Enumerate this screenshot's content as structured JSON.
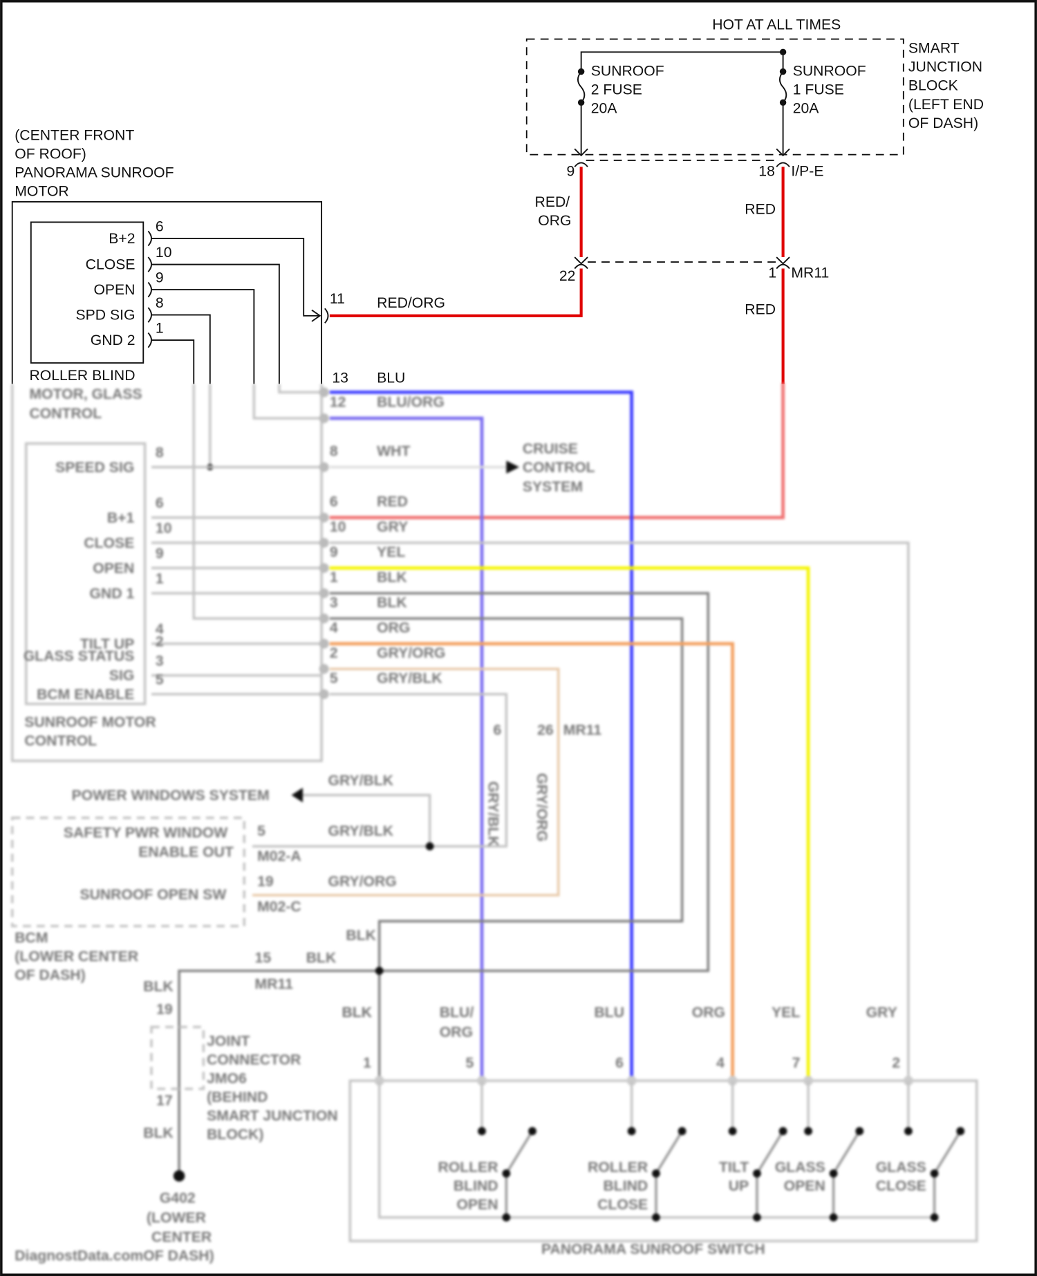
{
  "colors": {
    "red": "#e00000",
    "blue": "#3a3aff",
    "blu_org": "#7a6cf0",
    "yellow": "#f5f500",
    "orange": "#f3a060",
    "gry_org": "#e8c9a8",
    "grey": "#c8c8c8",
    "black_wire": "#808080",
    "frame": "#111111"
  },
  "top": {
    "hot": "HOT AT ALL TIMES",
    "fuse2": [
      "SUNROOF",
      "2 FUSE",
      "20A"
    ],
    "fuse1": [
      "SUNROOF",
      "1 FUSE",
      "20A"
    ],
    "sjb": [
      "SMART",
      "JUNCTION",
      "BLOCK",
      "(LEFT END",
      "OF DASH)"
    ]
  },
  "connectors": {
    "p9": "9",
    "p18": "18",
    "ipe": "I/P-E",
    "p22": "22",
    "p1": "1",
    "mr11": "MR11",
    "p11": "11",
    "p13": "13"
  },
  "wires": {
    "red_org_a": "RED/",
    "red_org_b": "ORG",
    "red1": "RED",
    "red2": "RED",
    "red_org": "RED/ORG",
    "blu": "BLU"
  },
  "motor": {
    "title": [
      "(CENTER FRONT",
      "OF ROOF)",
      "PANORAMA SUNROOF",
      "MOTOR"
    ],
    "roller_pins": [
      {
        "label": "B+2",
        "num": "6"
      },
      {
        "label": "CLOSE",
        "num": "10"
      },
      {
        "label": "OPEN",
        "num": "9"
      },
      {
        "label": "SPD SIG",
        "num": "8"
      },
      {
        "label": "GND 2",
        "num": "1"
      }
    ],
    "roller_title": [
      "ROLLER BLIND",
      "MOTOR, GLASS",
      "CONTROL"
    ],
    "sunroof_pins": [
      {
        "label": "SPEED SIG",
        "num": "8"
      },
      {
        "label": "B+1",
        "num": "6"
      },
      {
        "label": "CLOSE",
        "num": "10"
      },
      {
        "label": "OPEN",
        "num": "9"
      },
      {
        "label": "GND 1",
        "num": "1"
      },
      {
        "label": "TILT UP",
        "num": "4"
      },
      {
        "label": "GLASS STATUS",
        "num": "2"
      },
      {
        "label": "SIG",
        "num": "3"
      },
      {
        "label": "BCM ENABLE",
        "num": "5"
      }
    ],
    "sunroof_title": [
      "SUNROOF MOTOR",
      "CONTROL"
    ]
  },
  "harness": [
    {
      "num": "12",
      "color": "BLU/ORG"
    },
    {
      "num": "8",
      "color": "WHT"
    },
    {
      "num": "6",
      "color": "RED"
    },
    {
      "num": "10",
      "color": "GRY"
    },
    {
      "num": "9",
      "color": "YEL"
    },
    {
      "num": "1",
      "color": "BLK"
    },
    {
      "num": "3",
      "color": "BLK"
    },
    {
      "num": "4",
      "color": "ORG"
    },
    {
      "num": "2",
      "color": "GRY/ORG"
    },
    {
      "num": "5",
      "color": "GRY/BLK"
    }
  ],
  "cruise": [
    "CRUISE",
    "CONTROL",
    "SYSTEM"
  ],
  "mid": {
    "p6": "6",
    "p26": "26",
    "mr11": "MR11",
    "v1": "GRY/BLK",
    "v2": "GRY/ORG",
    "gry_blk1": "GRY/BLK",
    "power_windows": "POWER WINDOWS SYSTEM",
    "gry_blk2": "GRY/BLK",
    "gry_org": "GRY/ORG",
    "p5": "5",
    "p19": "19",
    "m02a": "M02-A",
    "m02c": "M02-C"
  },
  "bcm": {
    "l1": "SAFETY PWR WINDOW",
    "l2": "ENABLE OUT",
    "l3": "SUNROOF OPEN SW",
    "title": [
      "BCM",
      "(LOWER CENTER",
      "OF DASH)"
    ]
  },
  "ground": {
    "blk1": "BLK",
    "blk2": "BLK",
    "blk3": "BLK",
    "blk4": "BLK",
    "blk5": "BLK",
    "p15": "15",
    "mr11": "MR11",
    "p19": "19",
    "p17": "17",
    "jc": [
      "JOINT",
      "CONNECTOR",
      "JMO6",
      "(BEHIND",
      "SMART JUNCTION",
      "BLOCK)"
    ],
    "g": [
      "G402",
      "(LOWER",
      "CENTER"
    ],
    "watermark": "DiagnostData.com",
    "g_last": "OF DASH)"
  },
  "switch": {
    "wire_labels": [
      "BLK",
      "BLU/",
      "ORG",
      "BLU",
      "ORG",
      "YEL",
      "GRY"
    ],
    "pins": [
      "1",
      "5",
      "6",
      "4",
      "7",
      "2"
    ],
    "switches": [
      [
        "ROLLER",
        "BLIND",
        "OPEN"
      ],
      [
        "ROLLER",
        "BLIND",
        "CLOSE"
      ],
      [
        "TILT",
        "UP"
      ],
      [
        "GLASS",
        "OPEN"
      ],
      [
        "GLASS",
        "CLOSE"
      ]
    ],
    "title": "PANORAMA SUNROOF SWITCH"
  }
}
